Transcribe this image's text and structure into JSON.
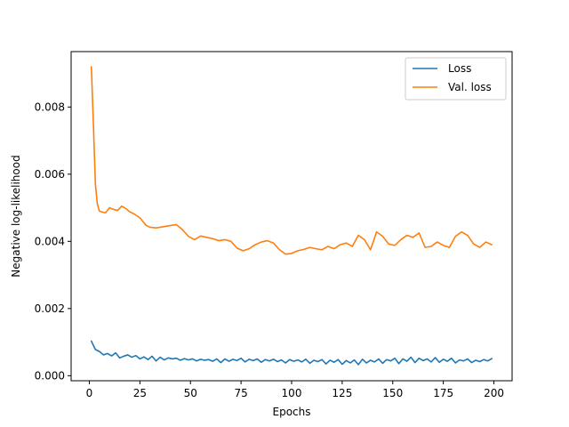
{
  "chart_data": {
    "type": "line",
    "title": "",
    "xlabel": "Epochs",
    "ylabel": "Negative log-likelihood",
    "xlim": [
      -9,
      209
    ],
    "ylim": [
      -0.00015,
      0.00965
    ],
    "xticks": [
      0,
      25,
      50,
      75,
      100,
      125,
      150,
      175,
      200
    ],
    "xtick_labels": [
      "0",
      "25",
      "50",
      "75",
      "100",
      "125",
      "150",
      "175",
      "200"
    ],
    "yticks": [
      0.0,
      0.002,
      0.004,
      0.006,
      0.008
    ],
    "ytick_labels": [
      "0.000",
      "0.002",
      "0.004",
      "0.006",
      "0.008"
    ],
    "grid": false,
    "legend": "upper-right",
    "series": [
      {
        "name": "Loss",
        "color": "#1f77b4",
        "x": [
          1,
          3,
          5,
          7,
          9,
          11,
          13,
          15,
          17,
          19,
          21,
          23,
          25,
          27,
          29,
          31,
          33,
          35,
          37,
          39,
          41,
          43,
          45,
          47,
          49,
          51,
          53,
          55,
          57,
          59,
          61,
          63,
          65,
          67,
          69,
          71,
          73,
          75,
          77,
          79,
          81,
          83,
          85,
          87,
          89,
          91,
          93,
          95,
          97,
          99,
          101,
          103,
          105,
          107,
          109,
          111,
          113,
          115,
          117,
          119,
          121,
          123,
          125,
          127,
          129,
          131,
          133,
          135,
          137,
          139,
          141,
          143,
          145,
          147,
          149,
          151,
          153,
          155,
          157,
          159,
          161,
          163,
          165,
          167,
          169,
          171,
          173,
          175,
          177,
          179,
          181,
          183,
          185,
          187,
          189,
          191,
          193,
          195,
          197,
          199
        ],
        "values": [
          0.00103,
          0.00078,
          0.00072,
          0.00062,
          0.00066,
          0.00059,
          0.00068,
          0.00053,
          0.00058,
          0.00062,
          0.00055,
          0.0006,
          0.0005,
          0.00056,
          0.00048,
          0.00058,
          0.00044,
          0.00055,
          0.00047,
          0.00053,
          0.0005,
          0.00052,
          0.00046,
          0.00051,
          0.00047,
          0.0005,
          0.00044,
          0.00049,
          0.00046,
          0.00048,
          0.00043,
          0.0005,
          0.00039,
          0.0005,
          0.00043,
          0.00049,
          0.00045,
          0.00052,
          0.00041,
          0.00049,
          0.00045,
          0.0005,
          0.0004,
          0.00048,
          0.00044,
          0.00049,
          0.00042,
          0.00047,
          0.00038,
          0.00048,
          0.00043,
          0.00047,
          0.00041,
          0.00049,
          0.00037,
          0.00046,
          0.00042,
          0.00048,
          0.00035,
          0.00046,
          0.0004,
          0.00048,
          0.00034,
          0.00045,
          0.00038,
          0.00047,
          0.00033,
          0.00049,
          0.00038,
          0.00046,
          0.00041,
          0.0005,
          0.00037,
          0.00048,
          0.00044,
          0.00052,
          0.00036,
          0.0005,
          0.00043,
          0.00055,
          0.00039,
          0.00052,
          0.00045,
          0.0005,
          0.00041,
          0.00054,
          0.0004,
          0.00049,
          0.00043,
          0.00052,
          0.00038,
          0.00047,
          0.00044,
          0.0005,
          0.00039,
          0.00046,
          0.00042,
          0.00048,
          0.00044,
          0.00051
        ]
      },
      {
        "name": "Val. loss",
        "color": "#ff7f0e",
        "x": [
          1,
          2,
          3,
          4,
          5,
          6,
          8,
          10,
          12,
          14,
          16,
          18,
          20,
          22,
          25,
          28,
          30,
          33,
          36,
          39,
          43,
          46,
          49,
          52,
          55,
          58,
          61,
          64,
          67,
          70,
          73,
          76,
          79,
          82,
          85,
          88,
          91,
          94,
          97,
          100,
          103,
          106,
          109,
          112,
          115,
          118,
          121,
          124,
          127,
          130,
          133,
          136,
          139,
          142,
          145,
          148,
          151,
          154,
          157,
          160,
          163,
          166,
          169,
          172,
          175,
          178,
          181,
          184,
          187,
          190,
          193,
          196,
          199
        ],
        "values": [
          0.0092,
          0.0075,
          0.0057,
          0.0051,
          0.0049,
          0.00488,
          0.00485,
          0.005,
          0.00495,
          0.00492,
          0.00505,
          0.00498,
          0.00488,
          0.00482,
          0.0047,
          0.00448,
          0.00442,
          0.0044,
          0.00443,
          0.00446,
          0.0045,
          0.00435,
          0.00415,
          0.00405,
          0.00416,
          0.00412,
          0.00408,
          0.00402,
          0.00405,
          0.004,
          0.0038,
          0.00372,
          0.00378,
          0.0039,
          0.00398,
          0.00402,
          0.00395,
          0.00375,
          0.00362,
          0.00364,
          0.00372,
          0.00376,
          0.00382,
          0.00378,
          0.00375,
          0.00385,
          0.00378,
          0.0039,
          0.00395,
          0.00385,
          0.00418,
          0.00405,
          0.00375,
          0.00428,
          0.00415,
          0.00392,
          0.00388,
          0.00405,
          0.00418,
          0.00412,
          0.00425,
          0.00382,
          0.00385,
          0.00398,
          0.00388,
          0.00382,
          0.00415,
          0.00428,
          0.00418,
          0.00392,
          0.00382,
          0.00398,
          0.0039
        ]
      }
    ]
  }
}
